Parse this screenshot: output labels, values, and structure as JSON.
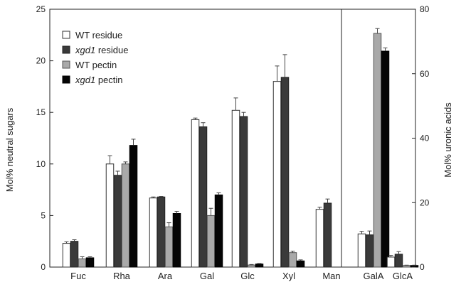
{
  "chart_data": {
    "type": "bar",
    "categories": [
      "Fuc",
      "Rha",
      "Ara",
      "Gal",
      "Glc",
      "Xyl",
      "Man",
      "GalA",
      "GlcA"
    ],
    "left_axis": {
      "label": "Mol% neutral sugars",
      "ylim": [
        0,
        25
      ],
      "ticks": [
        0,
        5,
        10,
        15,
        20,
        25
      ]
    },
    "right_axis": {
      "label": "Mol% uronic acids",
      "ylim": [
        0,
        80
      ],
      "ticks": [
        0,
        20,
        40,
        60,
        80
      ]
    },
    "right_axis_categories": [
      "GalA",
      "GlcA"
    ],
    "series": [
      {
        "name": "WT residue",
        "italic_part": "",
        "suffix": "residue",
        "color": "#ffffff",
        "stroke": "#333333",
        "values": [
          2.3,
          10.0,
          6.7,
          14.3,
          15.2,
          18.0,
          5.6,
          10.3,
          3.1
        ],
        "errors": [
          0.15,
          0.8,
          0.1,
          0.15,
          1.2,
          1.5,
          0.2,
          0.8,
          0.5
        ]
      },
      {
        "name": "xgd1 residue",
        "italic_part": "xgd1",
        "suffix": " residue",
        "color": "#3a3a3a",
        "stroke": "#222222",
        "values": [
          2.5,
          8.9,
          6.8,
          13.6,
          14.6,
          18.4,
          6.2,
          10.0,
          4.0
        ],
        "errors": [
          0.15,
          0.4,
          0.05,
          0.4,
          0.4,
          2.2,
          0.4,
          1.2,
          0.8
        ]
      },
      {
        "name": "WT pectin",
        "italic_part": "",
        "suffix": "pectin",
        "color": "#a9a9a9",
        "stroke": "#555555",
        "values": [
          0.8,
          10.0,
          3.9,
          5.0,
          0.2,
          1.4,
          0.0,
          72.5,
          0.5
        ],
        "errors": [
          0.2,
          0.2,
          0.4,
          0.7,
          0.05,
          0.15,
          0.0,
          1.5,
          0.1
        ]
      },
      {
        "name": "xgd1 pectin",
        "italic_part": "xgd1",
        "suffix": " pectin",
        "color": "#050505",
        "stroke": "#000000",
        "values": [
          0.9,
          11.8,
          5.2,
          7.0,
          0.3,
          0.6,
          0.0,
          67.0,
          0.5
        ],
        "errors": [
          0.1,
          0.6,
          0.2,
          0.2,
          0.05,
          0.1,
          0.0,
          1.0,
          0.1
        ]
      }
    ],
    "legend_position": "top-left",
    "grid": false
  }
}
